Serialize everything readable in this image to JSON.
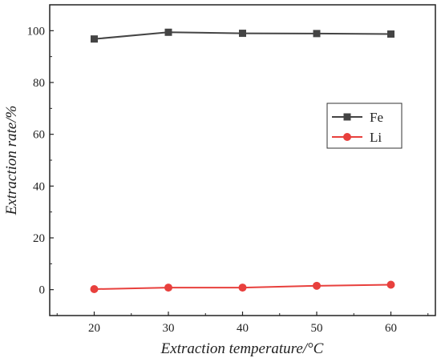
{
  "chart_data": {
    "type": "line",
    "title": "",
    "xlabel": "Extraction temperature/°C",
    "ylabel": "Extraction rate/%",
    "x": [
      20,
      30,
      40,
      50,
      60
    ],
    "xticks": [
      20,
      30,
      40,
      50,
      60
    ],
    "yticks": [
      0,
      20,
      40,
      60,
      80,
      100
    ],
    "xlim": [
      14,
      66
    ],
    "ylim": [
      -10,
      110
    ],
    "grid": false,
    "legend_position": "center-right",
    "series": [
      {
        "name": "Fe",
        "values": [
          96.8,
          99.4,
          99.0,
          98.9,
          98.7
        ],
        "color": "#444444",
        "marker": "square"
      },
      {
        "name": "Li",
        "values": [
          0.2,
          0.8,
          0.8,
          1.5,
          1.9
        ],
        "color": "#e8403d",
        "marker": "circle"
      }
    ]
  }
}
